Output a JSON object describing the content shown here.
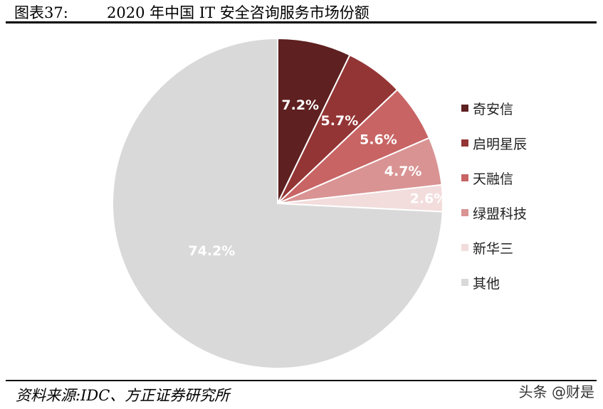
{
  "header": {
    "figure_label": "图表37:",
    "title": "2020 年中国 IT 安全咨询服务市场份额"
  },
  "footer": {
    "source": "资料来源:IDC、方正证券研究所",
    "watermark": "头条 @财是"
  },
  "chart_data": {
    "type": "pie",
    "title": "2020 年中国 IT 安全咨询服务市场份额",
    "start_angle_deg": 0,
    "direction": "clockwise",
    "legend_position": "right",
    "slices": [
      {
        "name": "奇安信",
        "value": 7.2,
        "label": "7.2%",
        "color": "#5e2020"
      },
      {
        "name": "启明星辰",
        "value": 5.7,
        "label": "5.7%",
        "color": "#943535"
      },
      {
        "name": "天融信",
        "value": 5.6,
        "label": "5.6%",
        "color": "#c86464"
      },
      {
        "name": "绿盟科技",
        "value": 4.7,
        "label": "4.7%",
        "color": "#d99393"
      },
      {
        "name": "新华三",
        "value": 2.6,
        "label": "2.6%",
        "color": "#f2dcdc"
      },
      {
        "name": "其他",
        "value": 74.2,
        "label": "74.2%",
        "color": "#d9d9d9"
      }
    ]
  }
}
